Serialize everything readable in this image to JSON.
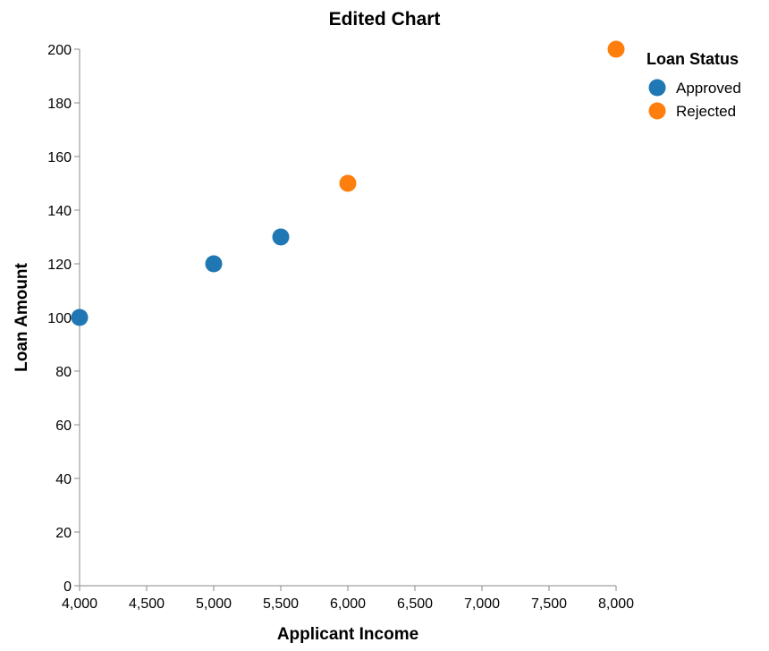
{
  "chart_data": {
    "type": "scatter",
    "title": "Edited Chart",
    "xlabel": "Applicant Income",
    "ylabel": "Loan Amount",
    "xlim": [
      4000,
      8000
    ],
    "ylim": [
      0,
      200
    ],
    "x_ticks": [
      "4,000",
      "4,500",
      "5,000",
      "5,500",
      "6,000",
      "6,500",
      "7,000",
      "7,500",
      "8,000"
    ],
    "y_ticks": [
      "0",
      "20",
      "40",
      "60",
      "80",
      "100",
      "120",
      "140",
      "160",
      "180",
      "200"
    ],
    "grid": false,
    "legend": {
      "title": "Loan Status",
      "position": "top-right",
      "entries": [
        {
          "label": "Approved",
          "color": "#1f77b4"
        },
        {
          "label": "Rejected",
          "color": "#ff7f0e"
        }
      ]
    },
    "series": [
      {
        "name": "Approved",
        "color": "#1f77b4",
        "points": [
          {
            "x": 4000,
            "y": 100
          },
          {
            "x": 5000,
            "y": 120
          },
          {
            "x": 5500,
            "y": 130
          }
        ]
      },
      {
        "name": "Rejected",
        "color": "#ff7f0e",
        "points": [
          {
            "x": 6000,
            "y": 150
          },
          {
            "x": 8000,
            "y": 200
          }
        ]
      }
    ]
  }
}
